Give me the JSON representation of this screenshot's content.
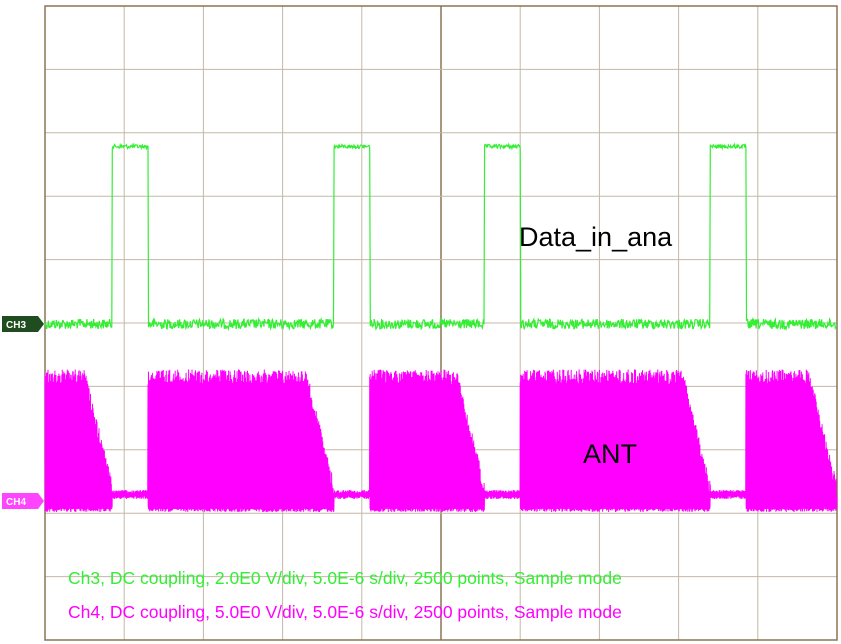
{
  "chart_data": {
    "type": "line",
    "title": "",
    "grid": true,
    "divisions": {
      "x": 10,
      "y": 10
    },
    "colors": {
      "frame": "#8b7355",
      "grid": "#c4b8a6",
      "ch3": "#33ee33",
      "ch4": "#ff00ff",
      "ch3_marker": "#1f4d1f",
      "ch4_marker": "#ff44ff"
    },
    "series": [
      {
        "name": "Data_in_ana",
        "channel": "CH3",
        "coupling": "DC",
        "volts_per_div": 2.0,
        "high_level_div": 1.75,
        "pulses_start_div": [
          0.85,
          3.65,
          5.55,
          8.4
        ],
        "pulses_end_div": [
          1.3,
          4.1,
          6.0,
          8.85
        ]
      },
      {
        "name": "ANT",
        "channel": "CH4",
        "coupling": "DC",
        "volts_per_div": 5.0,
        "amplitude_div": 1.8,
        "bursts_start_div": [
          0.0,
          1.3,
          4.1,
          6.0,
          8.85
        ],
        "bursts_end_div": [
          0.85,
          3.65,
          5.55,
          8.4,
          10.0
        ]
      }
    ],
    "time_per_div": "5.0E-6 s/div",
    "annotations": {
      "ch3_label": "Data_in_ana",
      "ch4_label": "ANT"
    },
    "markers": {
      "ch3": "CH3",
      "ch4": "CH4"
    },
    "info_lines": {
      "ch3": "Ch3, DC coupling, 2.0E0 V/div, 5.0E-6 s/div, 2500 points, Sample mode",
      "ch4": "Ch4, DC coupling, 5.0E0 V/div, 5.0E-6 s/div, 2500 points, Sample mode"
    }
  }
}
